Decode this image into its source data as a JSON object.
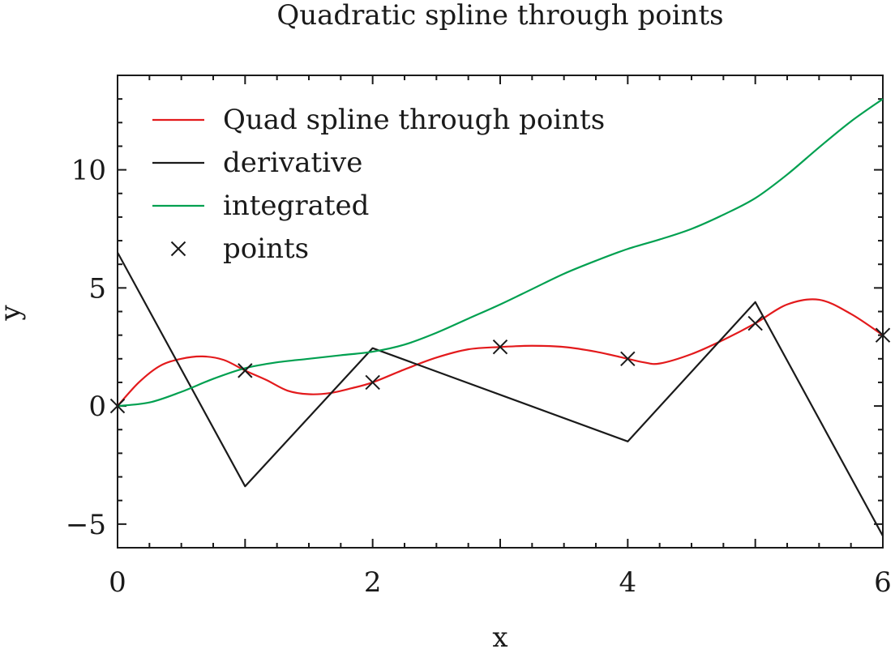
{
  "chart_data": {
    "type": "line",
    "title": "Quadratic spline through points",
    "xlabel": "x",
    "ylabel": "y",
    "xlim": [
      0,
      6
    ],
    "ylim": [
      -6,
      14
    ],
    "xticks": [
      0,
      2,
      4,
      6
    ],
    "yticks": [
      -5,
      0,
      5,
      10
    ],
    "xtick_labels": [
      "0",
      "2",
      "4",
      "6"
    ],
    "ytick_labels": [
      "−5",
      "0",
      "5",
      "10"
    ],
    "x_minor_step": 0.25,
    "y_minor_step": 1,
    "grid": false,
    "legend_position": "top-left",
    "series": [
      {
        "name": "Quad spline through points",
        "color": "#e31a1c",
        "style": "line",
        "x": [
          0,
          0.167,
          0.333,
          0.5,
          0.667,
          0.833,
          1.0,
          1.167,
          1.333,
          1.5,
          1.667,
          1.833,
          2.0,
          2.25,
          2.5,
          2.75,
          3.0,
          3.25,
          3.5,
          3.75,
          4.0,
          4.125,
          4.25,
          4.5,
          4.75,
          5.0,
          5.25,
          5.5,
          5.75,
          6.0
        ],
        "y": [
          0,
          1.0,
          1.7,
          2.0,
          2.1,
          1.95,
          1.5,
          1.1,
          0.65,
          0.5,
          0.55,
          0.75,
          1.0,
          1.55,
          2.05,
          2.4,
          2.5,
          2.55,
          2.5,
          2.3,
          2.0,
          1.85,
          1.8,
          2.2,
          2.8,
          3.5,
          4.3,
          4.5,
          3.9,
          3.0
        ]
      },
      {
        "name": "derivative",
        "color": "#1a1a1a",
        "style": "line",
        "x": [
          0,
          1.0,
          2.0,
          4.0,
          5.0,
          6.0
        ],
        "y": [
          6.5,
          -3.4,
          2.45,
          -1.5,
          4.4,
          -5.5
        ]
      },
      {
        "name": "integrated",
        "color": "#00a050",
        "style": "line",
        "x": [
          0,
          0.25,
          0.5,
          0.75,
          1.0,
          1.25,
          1.5,
          1.75,
          2.0,
          2.25,
          2.5,
          2.75,
          3.0,
          3.25,
          3.5,
          3.75,
          4.0,
          4.25,
          4.5,
          4.75,
          5.0,
          5.25,
          5.5,
          5.75,
          6.0
        ],
        "y": [
          0,
          0.15,
          0.6,
          1.15,
          1.6,
          1.85,
          2.0,
          2.15,
          2.3,
          2.6,
          3.1,
          3.7,
          4.3,
          4.95,
          5.6,
          6.15,
          6.65,
          7.05,
          7.5,
          8.1,
          8.8,
          9.8,
          10.95,
          12.05,
          13.0
        ]
      },
      {
        "name": "points",
        "color": "#1a1a1a",
        "style": "marker-x",
        "x": [
          0,
          1,
          2,
          3,
          4,
          5,
          6
        ],
        "y": [
          0,
          1.5,
          1.0,
          2.5,
          2.0,
          3.5,
          3.0
        ]
      }
    ]
  }
}
